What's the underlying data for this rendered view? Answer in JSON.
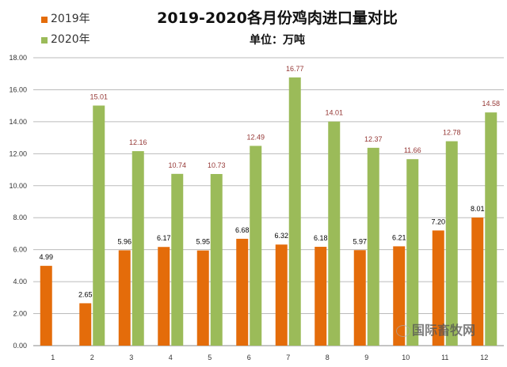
{
  "chart_data": {
    "type": "bar",
    "title": "2019-2020各月份鸡肉进口量对比",
    "subtitle": "单位：万吨",
    "categories": [
      "1",
      "2",
      "3",
      "4",
      "5",
      "6",
      "7",
      "8",
      "9",
      "10",
      "11",
      "12"
    ],
    "series": [
      {
        "name": "2019年",
        "color": "#E46C0A",
        "label_color": "#000000",
        "values": [
          4.99,
          2.65,
          5.96,
          6.17,
          5.95,
          6.68,
          6.32,
          6.18,
          5.97,
          6.21,
          7.2,
          8.01
        ],
        "labels": [
          "4.99",
          "2.65",
          "5.96",
          "6.17",
          "5.95",
          "6.68",
          "6.32",
          "6.18",
          "5.97",
          "6.21",
          "7.20",
          "8.01"
        ]
      },
      {
        "name": "2020年",
        "color": "#9BBB59",
        "label_color": "#953735",
        "values": [
          null,
          15.01,
          12.16,
          10.74,
          10.73,
          12.49,
          16.77,
          14.01,
          12.37,
          11.66,
          12.78,
          14.58
        ],
        "labels": [
          null,
          "15.01",
          "12.16",
          "10.74",
          "10.73",
          "12.49",
          "16.77",
          "14.01",
          "12.37",
          "11.66",
          "12.78",
          "14.58"
        ]
      }
    ],
    "ylim": [
      0,
      18
    ],
    "yticks": [
      "0.00",
      "2.00",
      "4.00",
      "6.00",
      "8.00",
      "10.00",
      "12.00",
      "14.00",
      "16.00",
      "18.00"
    ],
    "grid": true,
    "legend_position": "top-left"
  },
  "watermark": "国际畜牧网"
}
